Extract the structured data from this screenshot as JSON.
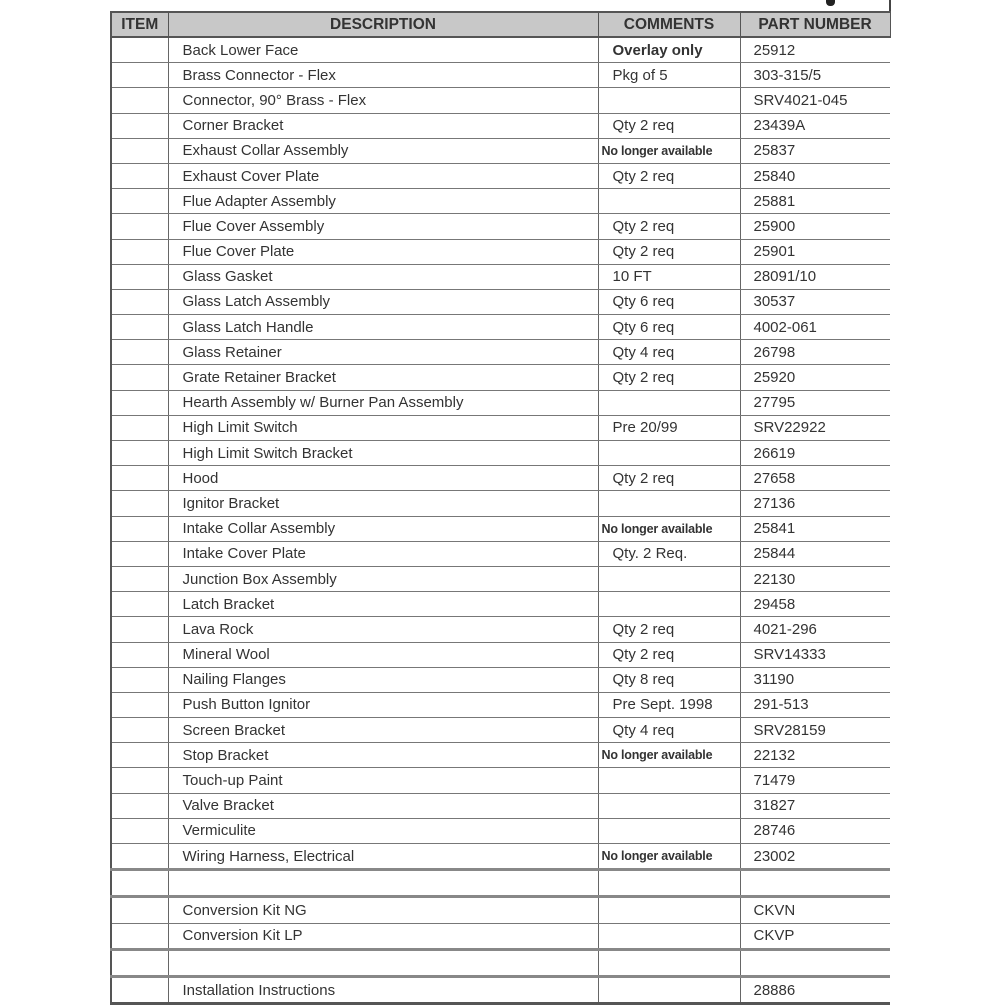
{
  "headers": {
    "item": "ITEM",
    "description": "DESCRIPTION",
    "comments": "COMMENTS",
    "part_number": "PART NUMBER"
  },
  "rows": [
    {
      "item": "",
      "description": "Back Lower Face",
      "comments": "Overlay only",
      "part_number": "25912",
      "style": "bold"
    },
    {
      "item": "",
      "description": "Brass Connector - Flex",
      "comments": "Pkg of 5",
      "part_number": "303-315/5"
    },
    {
      "item": "",
      "description": "Connector, 90° Brass - Flex",
      "comments": "",
      "part_number": "SRV4021-045"
    },
    {
      "item": "",
      "description": "Corner Bracket",
      "comments": "Qty 2 req",
      "part_number": "23439A"
    },
    {
      "item": "",
      "description": "Exhaust Collar Assembly",
      "comments": "No longer available",
      "part_number": "25837",
      "style": "small"
    },
    {
      "item": "",
      "description": "Exhaust Cover Plate",
      "comments": "Qty 2 req",
      "part_number": "25840"
    },
    {
      "item": "",
      "description": "Flue Adapter Assembly",
      "comments": "",
      "part_number": "25881"
    },
    {
      "item": "",
      "description": "Flue Cover Assembly",
      "comments": "Qty 2 req",
      "part_number": "25900"
    },
    {
      "item": "",
      "description": "Flue Cover Plate",
      "comments": "Qty 2 req",
      "part_number": "25901"
    },
    {
      "item": "",
      "description": "Glass Gasket",
      "comments": "10 FT",
      "part_number": "28091/10"
    },
    {
      "item": "",
      "description": "Glass Latch Assembly",
      "comments": "Qty 6 req",
      "part_number": "30537"
    },
    {
      "item": "",
      "description": "Glass Latch Handle",
      "comments": "Qty 6 req",
      "part_number": "4002-061"
    },
    {
      "item": "",
      "description": "Glass Retainer",
      "comments": "Qty 4 req",
      "part_number": "26798"
    },
    {
      "item": "",
      "description": "Grate Retainer Bracket",
      "comments": "Qty 2 req",
      "part_number": "25920"
    },
    {
      "item": "",
      "description": "Hearth Assembly w/ Burner Pan Assembly",
      "comments": "",
      "part_number": "27795"
    },
    {
      "item": "",
      "description": "High Limit Switch",
      "comments": "Pre 20/99",
      "part_number": "SRV22922"
    },
    {
      "item": "",
      "description": "High Limit Switch Bracket",
      "comments": "",
      "part_number": "26619"
    },
    {
      "item": "",
      "description": "Hood",
      "comments": "Qty 2 req",
      "part_number": "27658"
    },
    {
      "item": "",
      "description": "Ignitor Bracket",
      "comments": "",
      "part_number": "27136"
    },
    {
      "item": "",
      "description": "Intake Collar Assembly",
      "comments": "No longer available",
      "part_number": "25841",
      "style": "small"
    },
    {
      "item": "",
      "description": "Intake Cover Plate",
      "comments": "Qty. 2 Req.",
      "part_number": "25844"
    },
    {
      "item": "",
      "description": "Junction Box Assembly",
      "comments": "",
      "part_number": "22130"
    },
    {
      "item": "",
      "description": "Latch Bracket",
      "comments": "",
      "part_number": "29458"
    },
    {
      "item": "",
      "description": "Lava Rock",
      "comments": "Qty 2 req",
      "part_number": "4021-296"
    },
    {
      "item": "",
      "description": "Mineral Wool",
      "comments": "Qty 2 req",
      "part_number": "SRV14333"
    },
    {
      "item": "",
      "description": "Nailing Flanges",
      "comments": "Qty 8 req",
      "part_number": "31190"
    },
    {
      "item": "",
      "description": "Push Button Ignitor",
      "comments": "Pre Sept. 1998",
      "part_number": "291-513"
    },
    {
      "item": "",
      "description": "Screen Bracket",
      "comments": "Qty 4 req",
      "part_number": "SRV28159"
    },
    {
      "item": "",
      "description": "Stop Bracket",
      "comments": "No longer available",
      "part_number": "22132",
      "style": "small"
    },
    {
      "item": "",
      "description": "Touch-up Paint",
      "comments": "",
      "part_number": "71479"
    },
    {
      "item": "",
      "description": "Valve Bracket",
      "comments": "",
      "part_number": "31827"
    },
    {
      "item": "",
      "description": "Vermiculite",
      "comments": "",
      "part_number": "28746"
    },
    {
      "item": "",
      "description": "Wiring Harness, Electrical",
      "comments": "No longer available",
      "part_number": "23002",
      "style": "small"
    },
    {
      "item": "",
      "description": "",
      "comments": "",
      "part_number": "",
      "style": "gap"
    },
    {
      "item": "",
      "description": "Conversion Kit NG",
      "comments": "",
      "part_number": "CKVN"
    },
    {
      "item": "",
      "description": "Conversion Kit LP",
      "comments": "",
      "part_number": "CKVP",
      "style": "gapafter"
    },
    {
      "item": "",
      "description": "",
      "comments": "",
      "part_number": "",
      "style": "gap"
    },
    {
      "item": "",
      "description": "Installation Instructions",
      "comments": "",
      "part_number": "28886"
    }
  ]
}
